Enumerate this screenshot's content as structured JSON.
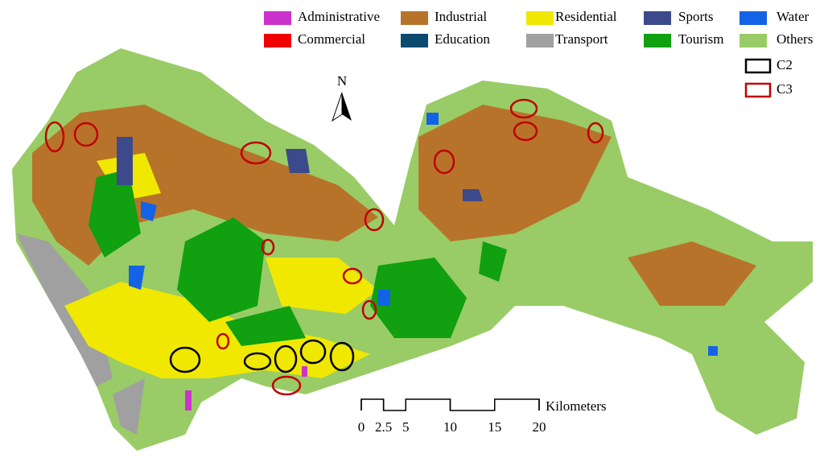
{
  "legend": {
    "items": [
      {
        "name": "Administrative",
        "color": "#cc33cc"
      },
      {
        "name": "Industrial",
        "color": "#b8732a"
      },
      {
        "name": "Residential",
        "color": "#f0e800"
      },
      {
        "name": "Sports",
        "color": "#3c4a8c"
      },
      {
        "name": "Water",
        "color": "#1463e6"
      },
      {
        "name": "Commercial",
        "color": "#f00000"
      },
      {
        "name": "Education",
        "color": "#0a4a6e"
      },
      {
        "name": "Transport",
        "color": "#a0a0a0"
      },
      {
        "name": "Tourism",
        "color": "#10a010"
      },
      {
        "name": "Others",
        "color": "#99cc66"
      }
    ],
    "clusters": [
      {
        "name": "C2",
        "color": "#000000"
      },
      {
        "name": "C3",
        "color": "#c00000"
      }
    ]
  },
  "north": "N",
  "scale": {
    "unit": "Kilometers",
    "ticks": [
      0,
      2.5,
      5,
      10,
      15,
      20
    ]
  }
}
